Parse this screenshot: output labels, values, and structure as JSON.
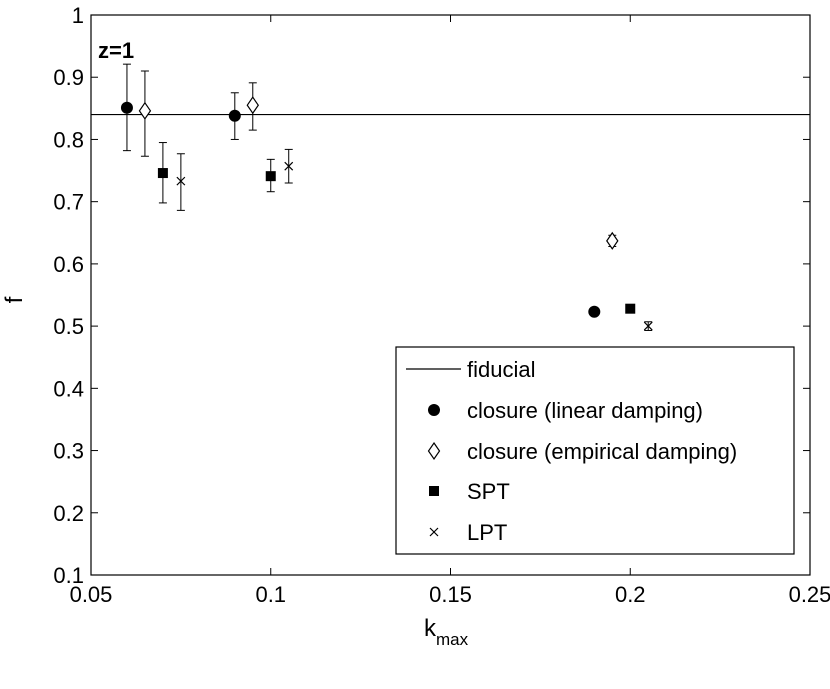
{
  "chart_data": {
    "type": "scatter",
    "annotation": "z=1",
    "xlabel": {
      "base": "k",
      "sub": "max"
    },
    "ylabel": "f",
    "xlim": [
      0.05,
      0.25
    ],
    "ylim": [
      0.1,
      1.0
    ],
    "xticks": [
      0.05,
      0.1,
      0.15,
      0.2,
      0.25
    ],
    "xtick_labels": [
      "0.05",
      "0.1",
      "0.15",
      "0.2",
      "0.25"
    ],
    "yticks": [
      0.1,
      0.2,
      0.3,
      0.4,
      0.5,
      0.6,
      0.7,
      0.8,
      0.9,
      1.0
    ],
    "ytick_labels": [
      "0.1",
      "0.2",
      "0.3",
      "0.4",
      "0.5",
      "0.6",
      "0.7",
      "0.8",
      "0.9",
      "1"
    ],
    "grid": false,
    "legend_position": "bottom-right",
    "fiducial": {
      "name": "fiducial",
      "value": 0.84
    },
    "series": [
      {
        "name": "closure (linear damping)",
        "marker": "filled-circle",
        "points": [
          {
            "x": 0.06,
            "y": 0.851,
            "err_low": 0.782,
            "err_high": 0.921
          },
          {
            "x": 0.09,
            "y": 0.838,
            "err_low": 0.8,
            "err_high": 0.875
          },
          {
            "x": 0.19,
            "y": 0.523,
            "err_low": 0.517,
            "err_high": 0.529
          }
        ]
      },
      {
        "name": "closure (empirical damping)",
        "marker": "open-diamond",
        "points": [
          {
            "x": 0.065,
            "y": 0.846,
            "err_low": 0.773,
            "err_high": 0.91
          },
          {
            "x": 0.095,
            "y": 0.855,
            "err_low": 0.815,
            "err_high": 0.891
          },
          {
            "x": 0.195,
            "y": 0.637,
            "err_low": 0.628,
            "err_high": 0.646
          }
        ]
      },
      {
        "name": "SPT",
        "marker": "filled-square",
        "points": [
          {
            "x": 0.07,
            "y": 0.746,
            "err_low": 0.698,
            "err_high": 0.795
          },
          {
            "x": 0.1,
            "y": 0.741,
            "err_low": 0.716,
            "err_high": 0.768
          },
          {
            "x": 0.2,
            "y": 0.528,
            "err_low": 0.525,
            "err_high": 0.531
          }
        ]
      },
      {
        "name": "LPT",
        "marker": "x",
        "points": [
          {
            "x": 0.075,
            "y": 0.733,
            "err_low": 0.686,
            "err_high": 0.777
          },
          {
            "x": 0.105,
            "y": 0.757,
            "err_low": 0.73,
            "err_high": 0.784
          },
          {
            "x": 0.205,
            "y": 0.5,
            "err_low": 0.493,
            "err_high": 0.507
          }
        ]
      }
    ]
  }
}
